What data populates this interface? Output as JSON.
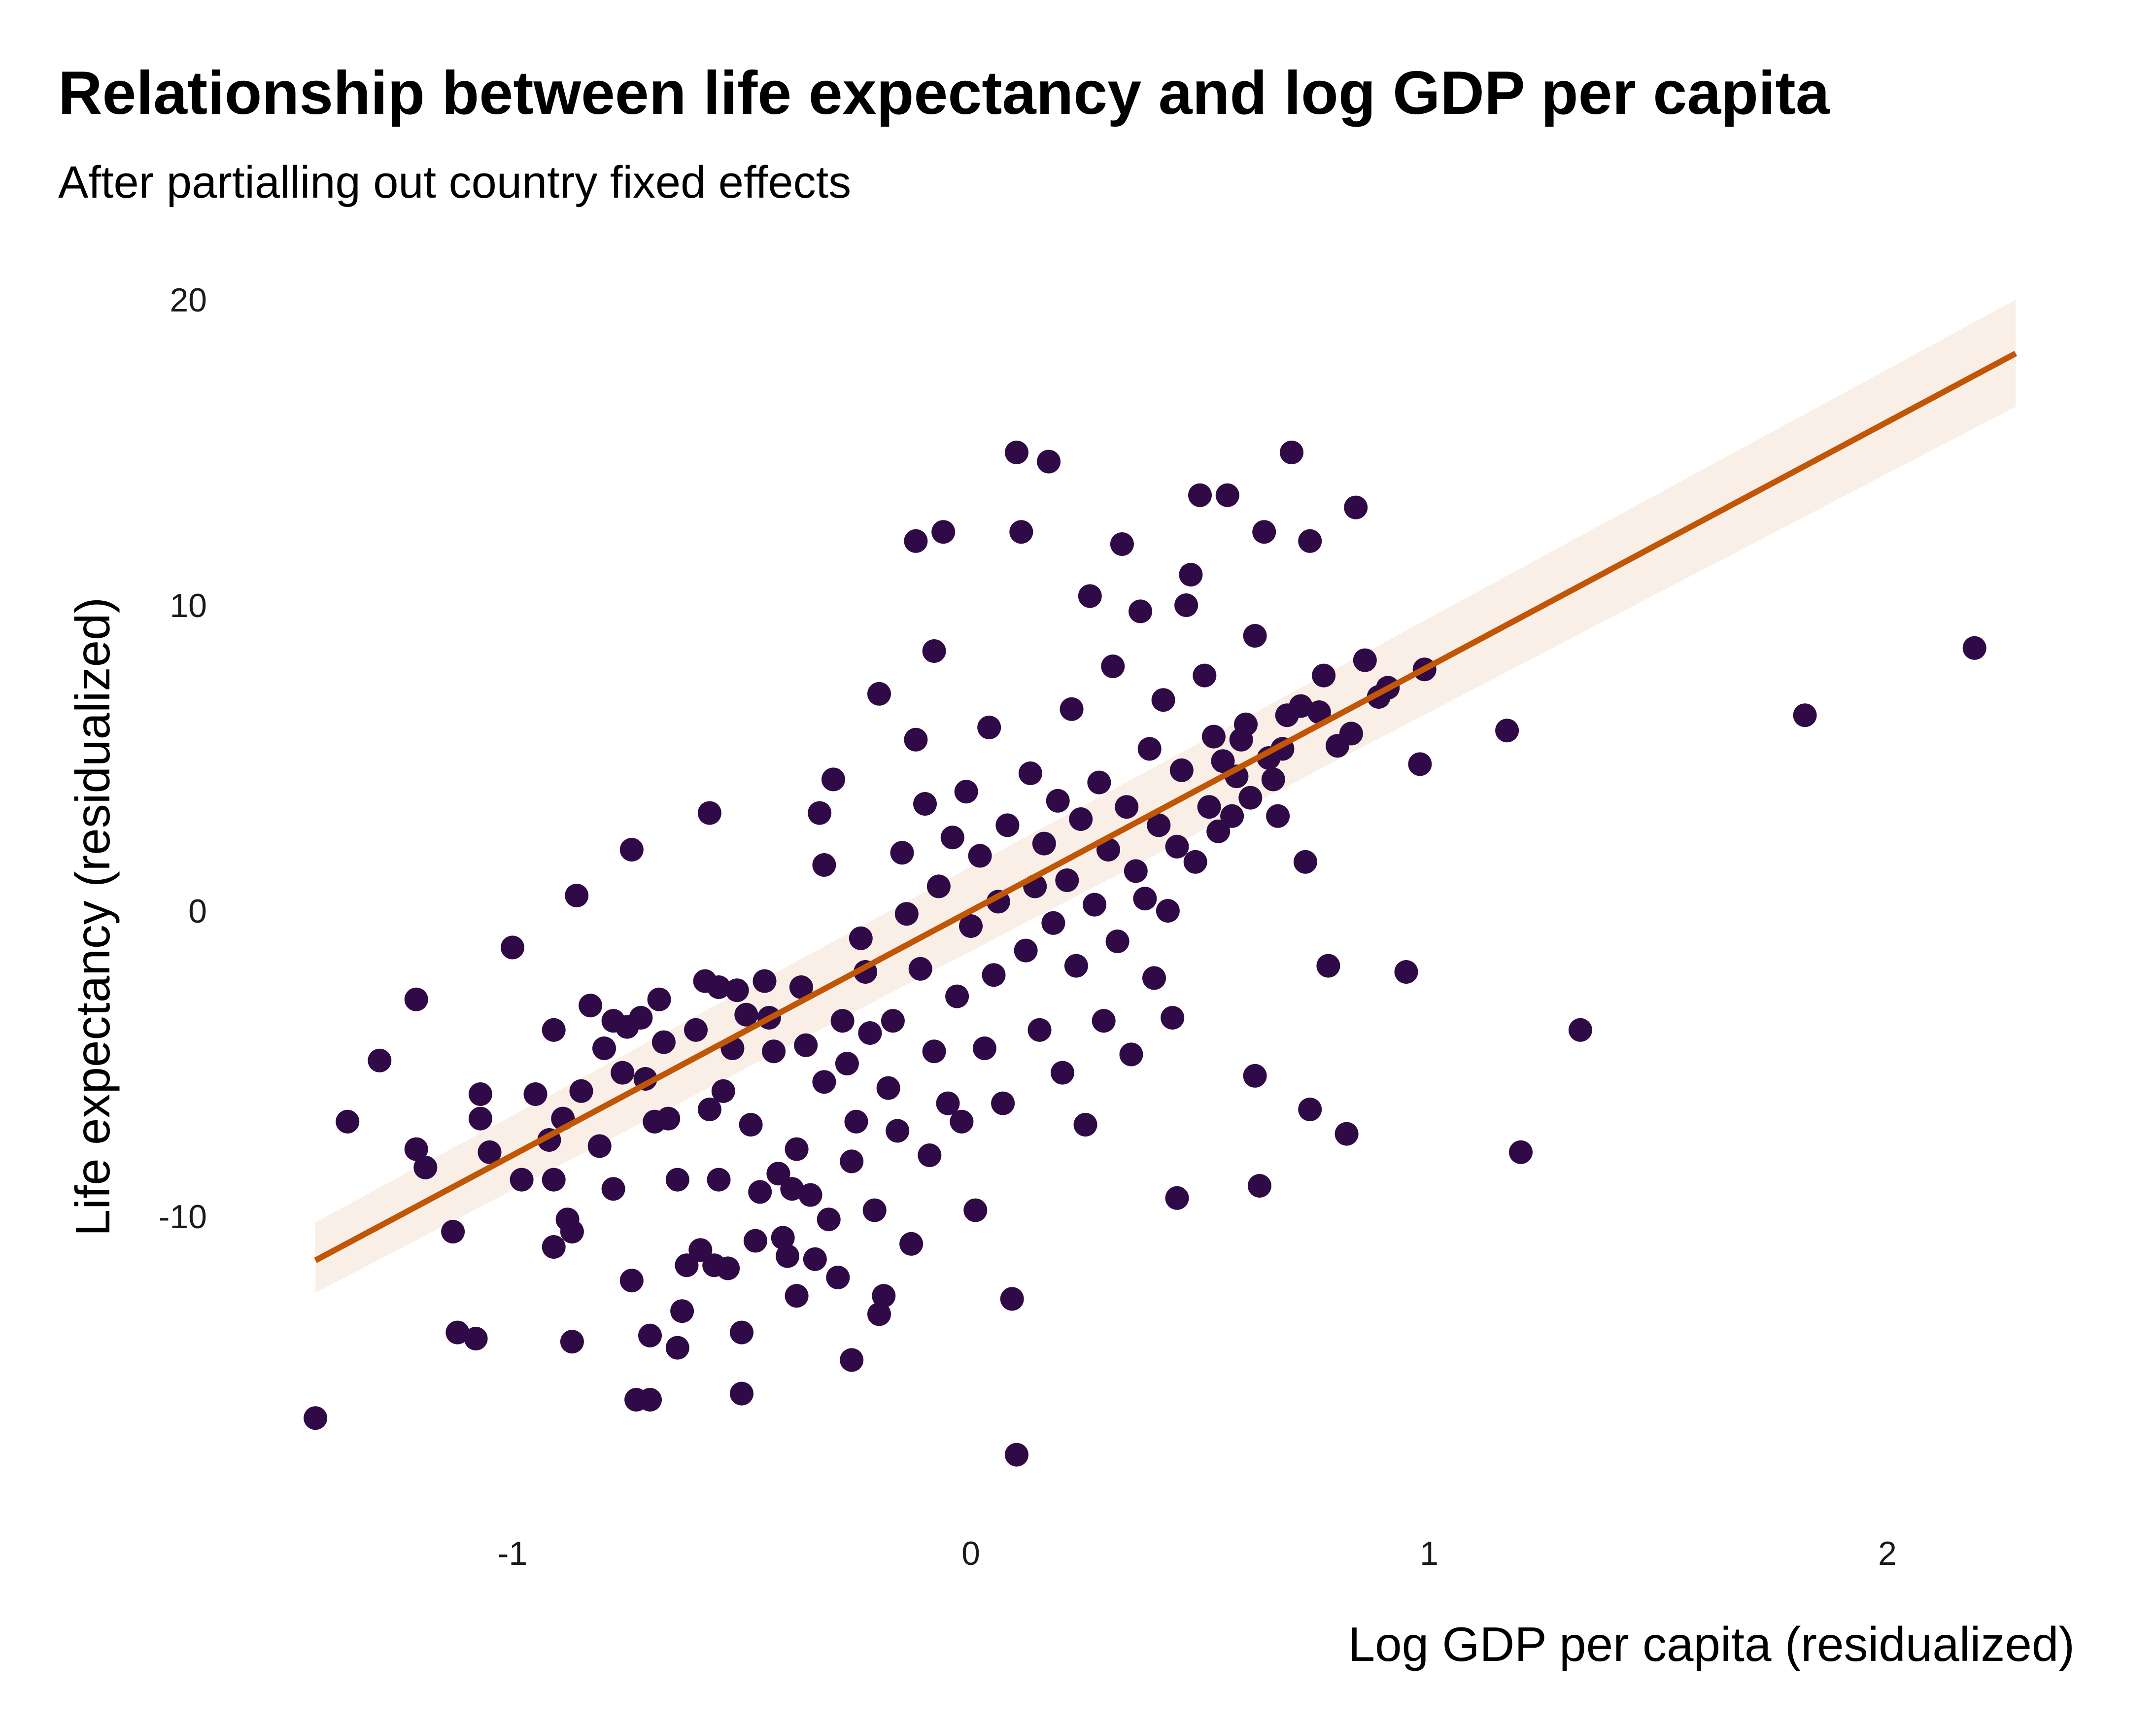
{
  "chart_data": {
    "type": "scatter",
    "title": "Relationship between life expectancy and log GDP per capita",
    "subtitle": "After partialling out country fixed effects",
    "xlabel": "Log GDP per capita (residualized)",
    "ylabel": "Life expectancy (residualized)",
    "xlim": [
      -1.55,
      2.4
    ],
    "ylim": [
      -19.5,
      21.5
    ],
    "x_ticks": [
      -1,
      0,
      1,
      2
    ],
    "x_tick_labels": [
      "-1",
      "0",
      "1",
      "2"
    ],
    "y_ticks": [
      -10,
      0,
      10,
      20
    ],
    "y_tick_labels": [
      "-10",
      "0",
      "10",
      "20"
    ],
    "grid": false,
    "colors": {
      "points": "#2F0A46",
      "fit_line": "#C05606",
      "ribbon": "#F8EDE4"
    },
    "fit": {
      "x_range": [
        -1.43,
        2.28
      ],
      "slope": 8.0,
      "intercept": 0.0,
      "ci_at_min": [
        -12.5,
        -10.2
      ],
      "ci_at_max": [
        16.5,
        20.0
      ]
    },
    "points": [
      [
        -1.43,
        -16.6
      ],
      [
        -1.36,
        -6.9
      ],
      [
        -1.29,
        -4.9
      ],
      [
        -1.21,
        -2.9
      ],
      [
        -1.21,
        -7.8
      ],
      [
        -1.19,
        -8.4
      ],
      [
        -1.13,
        -10.5
      ],
      [
        -1.12,
        -13.8
      ],
      [
        -1.08,
        -14.0
      ],
      [
        -1.07,
        -6.0
      ],
      [
        -1.07,
        -6.8
      ],
      [
        -1.05,
        -7.9
      ],
      [
        -1.0,
        -1.2
      ],
      [
        -0.98,
        -8.8
      ],
      [
        -0.95,
        -6.0
      ],
      [
        -0.92,
        -7.5
      ],
      [
        -0.91,
        -8.8
      ],
      [
        -0.91,
        -11.0
      ],
      [
        -0.91,
        -3.9
      ],
      [
        -0.89,
        -6.8
      ],
      [
        -0.88,
        -10.1
      ],
      [
        -0.87,
        -10.5
      ],
      [
        -0.87,
        -14.1
      ],
      [
        -0.86,
        0.5
      ],
      [
        -0.85,
        -5.9
      ],
      [
        -0.83,
        -3.1
      ],
      [
        -0.81,
        -7.7
      ],
      [
        -0.8,
        -4.5
      ],
      [
        -0.78,
        -3.6
      ],
      [
        -0.78,
        -9.1
      ],
      [
        -0.76,
        -5.3
      ],
      [
        -0.75,
        -3.8
      ],
      [
        -0.74,
        2.0
      ],
      [
        -0.74,
        -12.1
      ],
      [
        -0.73,
        -16.0
      ],
      [
        -0.72,
        -3.5
      ],
      [
        -0.71,
        -5.5
      ],
      [
        -0.7,
        -16.0
      ],
      [
        -0.7,
        -13.9
      ],
      [
        -0.69,
        -6.9
      ],
      [
        -0.68,
        -2.9
      ],
      [
        -0.67,
        -4.3
      ],
      [
        -0.66,
        -6.8
      ],
      [
        -0.64,
        -14.3
      ],
      [
        -0.64,
        -8.8
      ],
      [
        -0.63,
        -13.1
      ],
      [
        -0.62,
        -11.6
      ],
      [
        -0.6,
        -3.9
      ],
      [
        -0.59,
        -11.1
      ],
      [
        -0.58,
        -2.3
      ],
      [
        -0.57,
        -6.5
      ],
      [
        -0.57,
        3.2
      ],
      [
        -0.56,
        -11.6
      ],
      [
        -0.55,
        -8.8
      ],
      [
        -0.55,
        -2.5
      ],
      [
        -0.54,
        -5.9
      ],
      [
        -0.53,
        -11.7
      ],
      [
        -0.52,
        -4.5
      ],
      [
        -0.51,
        -2.6
      ],
      [
        -0.5,
        -15.8
      ],
      [
        -0.5,
        -13.8
      ],
      [
        -0.49,
        -3.4
      ],
      [
        -0.48,
        -7.0
      ],
      [
        -0.47,
        -10.8
      ],
      [
        -0.46,
        -9.2
      ],
      [
        -0.45,
        -2.3
      ],
      [
        -0.44,
        -3.5
      ],
      [
        -0.43,
        -4.6
      ],
      [
        -0.42,
        -8.6
      ],
      [
        -0.41,
        -10.7
      ],
      [
        -0.4,
        -11.3
      ],
      [
        -0.39,
        -9.1
      ],
      [
        -0.38,
        -7.8
      ],
      [
        -0.38,
        -12.6
      ],
      [
        -0.37,
        -2.5
      ],
      [
        -0.36,
        -4.4
      ],
      [
        -0.35,
        -9.3
      ],
      [
        -0.34,
        -11.4
      ],
      [
        -0.33,
        3.2
      ],
      [
        -0.32,
        -5.6
      ],
      [
        -0.32,
        1.5
      ],
      [
        -0.31,
        -10.1
      ],
      [
        -0.3,
        4.3
      ],
      [
        -0.29,
        -12.0
      ],
      [
        -0.28,
        -3.6
      ],
      [
        -0.27,
        -5.0
      ],
      [
        -0.26,
        -8.2
      ],
      [
        -0.26,
        -14.7
      ],
      [
        -0.25,
        -6.9
      ],
      [
        -0.24,
        -0.9
      ],
      [
        -0.23,
        -2.0
      ],
      [
        -0.22,
        -4.0
      ],
      [
        -0.21,
        -9.8
      ],
      [
        -0.2,
        -13.2
      ],
      [
        -0.2,
        7.1
      ],
      [
        -0.19,
        -12.6
      ],
      [
        -0.18,
        -5.8
      ],
      [
        -0.17,
        -3.6
      ],
      [
        -0.16,
        -7.2
      ],
      [
        -0.15,
        1.9
      ],
      [
        -0.14,
        -0.1
      ],
      [
        -0.13,
        -10.9
      ],
      [
        -0.12,
        5.6
      ],
      [
        -0.12,
        12.1
      ],
      [
        -0.11,
        -1.9
      ],
      [
        -0.1,
        3.5
      ],
      [
        -0.09,
        -8.0
      ],
      [
        -0.08,
        -4.6
      ],
      [
        -0.08,
        8.5
      ],
      [
        -0.07,
        0.8
      ],
      [
        -0.06,
        12.4
      ],
      [
        -0.05,
        -6.3
      ],
      [
        -0.04,
        2.4
      ],
      [
        -0.03,
        -2.8
      ],
      [
        -0.02,
        -6.9
      ],
      [
        -0.01,
        3.9
      ],
      [
        0.0,
        -0.5
      ],
      [
        0.01,
        -9.8
      ],
      [
        0.02,
        1.8
      ],
      [
        0.03,
        -4.5
      ],
      [
        0.04,
        6.0
      ],
      [
        0.05,
        -2.1
      ],
      [
        0.06,
        0.3
      ],
      [
        0.07,
        -6.3
      ],
      [
        0.08,
        2.8
      ],
      [
        0.09,
        -12.7
      ],
      [
        0.1,
        -17.8
      ],
      [
        0.1,
        15.0
      ],
      [
        0.11,
        12.4
      ],
      [
        0.12,
        -1.3
      ],
      [
        0.13,
        4.5
      ],
      [
        0.14,
        0.8
      ],
      [
        0.15,
        -3.9
      ],
      [
        0.16,
        2.2
      ],
      [
        0.17,
        14.7
      ],
      [
        0.18,
        -0.4
      ],
      [
        0.19,
        3.6
      ],
      [
        0.2,
        -5.3
      ],
      [
        0.21,
        1.0
      ],
      [
        0.22,
        6.6
      ],
      [
        0.23,
        -1.8
      ],
      [
        0.24,
        3.0
      ],
      [
        0.25,
        -7.0
      ],
      [
        0.26,
        10.3
      ],
      [
        0.27,
        0.2
      ],
      [
        0.28,
        4.2
      ],
      [
        0.29,
        -3.6
      ],
      [
        0.3,
        2.0
      ],
      [
        0.31,
        8.0
      ],
      [
        0.32,
        -1.0
      ],
      [
        0.33,
        12.0
      ],
      [
        0.34,
        3.4
      ],
      [
        0.35,
        -4.7
      ],
      [
        0.36,
        1.3
      ],
      [
        0.37,
        9.8
      ],
      [
        0.38,
        0.4
      ],
      [
        0.39,
        5.3
      ],
      [
        0.4,
        -2.2
      ],
      [
        0.41,
        2.8
      ],
      [
        0.42,
        6.9
      ],
      [
        0.43,
        0.0
      ],
      [
        0.44,
        -3.5
      ],
      [
        0.45,
        2.1
      ],
      [
        0.45,
        -9.4
      ],
      [
        0.46,
        4.6
      ],
      [
        0.47,
        10.0
      ],
      [
        0.48,
        11.0
      ],
      [
        0.49,
        1.6
      ],
      [
        0.5,
        13.6
      ],
      [
        0.51,
        7.7
      ],
      [
        0.52,
        3.4
      ],
      [
        0.53,
        5.7
      ],
      [
        0.54,
        2.6
      ],
      [
        0.55,
        4.9
      ],
      [
        0.56,
        13.6
      ],
      [
        0.57,
        3.1
      ],
      [
        0.58,
        4.4
      ],
      [
        0.59,
        5.6
      ],
      [
        0.6,
        6.1
      ],
      [
        0.61,
        3.7
      ],
      [
        0.62,
        9.0
      ],
      [
        0.62,
        -5.4
      ],
      [
        0.63,
        -9.0
      ],
      [
        0.64,
        12.4
      ],
      [
        0.65,
        5.0
      ],
      [
        0.66,
        4.3
      ],
      [
        0.67,
        3.1
      ],
      [
        0.68,
        5.3
      ],
      [
        0.69,
        6.4
      ],
      [
        0.7,
        15.0
      ],
      [
        0.72,
        6.7
      ],
      [
        0.73,
        1.6
      ],
      [
        0.74,
        12.1
      ],
      [
        0.74,
        -6.5
      ],
      [
        0.76,
        6.5
      ],
      [
        0.77,
        7.7
      ],
      [
        0.78,
        -1.8
      ],
      [
        0.8,
        5.4
      ],
      [
        0.82,
        -7.3
      ],
      [
        0.83,
        5.8
      ],
      [
        0.84,
        13.2
      ],
      [
        0.86,
        8.2
      ],
      [
        0.89,
        7.0
      ],
      [
        0.91,
        7.3
      ],
      [
        0.95,
        -2.0
      ],
      [
        0.98,
        4.8
      ],
      [
        0.99,
        7.9
      ],
      [
        1.17,
        5.9
      ],
      [
        1.2,
        -7.9
      ],
      [
        1.33,
        -3.9
      ],
      [
        1.82,
        6.4
      ],
      [
        2.19,
        8.6
      ]
    ]
  }
}
